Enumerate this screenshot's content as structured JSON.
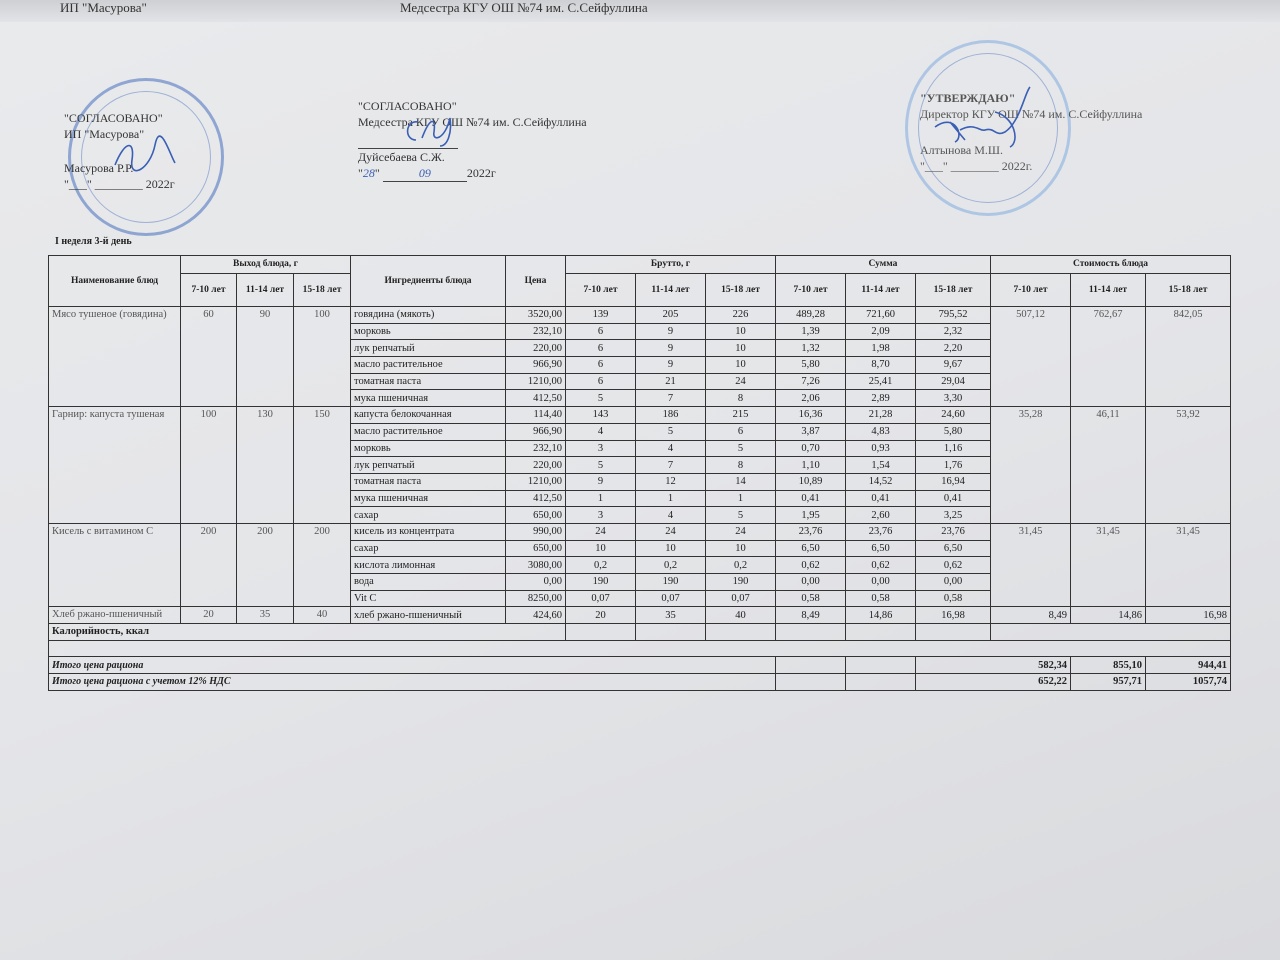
{
  "top_strip": {
    "left": "ИП \"Масурова\"",
    "center": "Медсестра КГУ ОШ №74 им. С.Сейфуллина"
  },
  "approvals": {
    "left": {
      "title": "\"СОГЛАСОВАНО\"",
      "org": "ИП \"Масурова\"",
      "name": "Масурова Р.Р.",
      "date": "\"___\" ________ 2022г"
    },
    "middle": {
      "title": "\"СОГЛАСОВАНО\"",
      "org": "Медсестра КГУ ОШ №74 им. С.Сейфуллина",
      "name": "Дуйсебаева С.Ж.",
      "date_day": "28",
      "date_month": "09",
      "date_year": "2022г"
    },
    "right": {
      "title": "\"УТВЕРЖДАЮ\"",
      "org": "Директор КГУ ОШ №74 им. С.Сейфуллина",
      "name": "Алтынова М.Ш.",
      "date": "\"___\" ________ 2022г."
    }
  },
  "week_label": "I неделя 3-й день",
  "table": {
    "headers": {
      "dish": "Наименование блюд",
      "yield": "Выход блюда, г",
      "ingredients": "Ингредиенты блюда",
      "price": "Цена",
      "gross": "Брутто, г",
      "sum": "Сумма",
      "cost": "Стоимость блюда",
      "ages": [
        "7-10 лет",
        "11-14 лет",
        "15-18 лет"
      ]
    },
    "dishes": [
      {
        "name": "Мясо тушеное (говядина)",
        "yield": [
          "60",
          "90",
          "100"
        ],
        "cost": [
          "507,12",
          "762,67",
          "842,05"
        ],
        "items": [
          {
            "ing": "говядина (мякоть)",
            "price": "3520,00",
            "gross": [
              "139",
              "205",
              "226"
            ],
            "sum": [
              "489,28",
              "721,60",
              "795,52"
            ]
          },
          {
            "ing": "морковь",
            "price": "232,10",
            "gross": [
              "6",
              "9",
              "10"
            ],
            "sum": [
              "1,39",
              "2,09",
              "2,32"
            ]
          },
          {
            "ing": "лук репчатый",
            "price": "220,00",
            "gross": [
              "6",
              "9",
              "10"
            ],
            "sum": [
              "1,32",
              "1,98",
              "2,20"
            ]
          },
          {
            "ing": "масло растительное",
            "price": "966,90",
            "gross": [
              "6",
              "9",
              "10"
            ],
            "sum": [
              "5,80",
              "8,70",
              "9,67"
            ]
          },
          {
            "ing": "томатная паста",
            "price": "1210,00",
            "gross": [
              "6",
              "21",
              "24"
            ],
            "sum": [
              "7,26",
              "25,41",
              "29,04"
            ]
          },
          {
            "ing": "мука пшеничная",
            "price": "412,50",
            "gross": [
              "5",
              "7",
              "8"
            ],
            "sum": [
              "2,06",
              "2,89",
              "3,30"
            ]
          }
        ]
      },
      {
        "name": "Гарнир: капуста тушеная",
        "yield": [
          "100",
          "130",
          "150"
        ],
        "cost": [
          "35,28",
          "46,11",
          "53,92"
        ],
        "items": [
          {
            "ing": "капуста белокочанная",
            "price": "114,40",
            "gross": [
              "143",
              "186",
              "215"
            ],
            "sum": [
              "16,36",
              "21,28",
              "24,60"
            ]
          },
          {
            "ing": "масло растительное",
            "price": "966,90",
            "gross": [
              "4",
              "5",
              "6"
            ],
            "sum": [
              "3,87",
              "4,83",
              "5,80"
            ]
          },
          {
            "ing": "морковь",
            "price": "232,10",
            "gross": [
              "3",
              "4",
              "5"
            ],
            "sum": [
              "0,70",
              "0,93",
              "1,16"
            ]
          },
          {
            "ing": "лук репчатый",
            "price": "220,00",
            "gross": [
              "5",
              "7",
              "8"
            ],
            "sum": [
              "1,10",
              "1,54",
              "1,76"
            ]
          },
          {
            "ing": "томатная паста",
            "price": "1210,00",
            "gross": [
              "9",
              "12",
              "14"
            ],
            "sum": [
              "10,89",
              "14,52",
              "16,94"
            ]
          },
          {
            "ing": "мука пшеничная",
            "price": "412,50",
            "gross": [
              "1",
              "1",
              "1"
            ],
            "sum": [
              "0,41",
              "0,41",
              "0,41"
            ]
          },
          {
            "ing": "сахар",
            "price": "650,00",
            "gross": [
              "3",
              "4",
              "5"
            ],
            "sum": [
              "1,95",
              "2,60",
              "3,25"
            ]
          }
        ]
      },
      {
        "name": "Кисель с витамином С",
        "yield": [
          "200",
          "200",
          "200"
        ],
        "cost": [
          "31,45",
          "31,45",
          "31,45"
        ],
        "items": [
          {
            "ing": "кисель из концентрата",
            "price": "990,00",
            "gross": [
              "24",
              "24",
              "24"
            ],
            "sum": [
              "23,76",
              "23,76",
              "23,76"
            ]
          },
          {
            "ing": "сахар",
            "price": "650,00",
            "gross": [
              "10",
              "10",
              "10"
            ],
            "sum": [
              "6,50",
              "6,50",
              "6,50"
            ]
          },
          {
            "ing": "кислота лимонная",
            "price": "3080,00",
            "gross": [
              "0,2",
              "0,2",
              "0,2"
            ],
            "sum": [
              "0,62",
              "0,62",
              "0,62"
            ]
          },
          {
            "ing": "вода",
            "price": "0,00",
            "gross": [
              "190",
              "190",
              "190"
            ],
            "sum": [
              "0,00",
              "0,00",
              "0,00"
            ]
          },
          {
            "ing": "Vit C",
            "price": "8250,00",
            "gross": [
              "0,07",
              "0,07",
              "0,07"
            ],
            "sum": [
              "0,58",
              "0,58",
              "0,58"
            ]
          }
        ]
      },
      {
        "name": "Хлеб ржано-пшеничный",
        "yield": [
          "20",
          "35",
          "40"
        ],
        "cost": [
          "8,49",
          "14,86",
          "16,98"
        ],
        "items": [
          {
            "ing": "хлеб ржано-пшеничный",
            "price": "424,60",
            "gross": [
              "20",
              "35",
              "40"
            ],
            "sum": [
              "8,49",
              "14,86",
              "16,98"
            ]
          }
        ]
      }
    ],
    "calories_label": "Калорийность, ккал",
    "total_label": "Итого цена рациона",
    "total": [
      "582,34",
      "855,10",
      "944,41"
    ],
    "total_vat_label": "Итого цена рациона с учетом 12% НДС",
    "total_vat": [
      "652,22",
      "957,71",
      "1057,74"
    ]
  }
}
